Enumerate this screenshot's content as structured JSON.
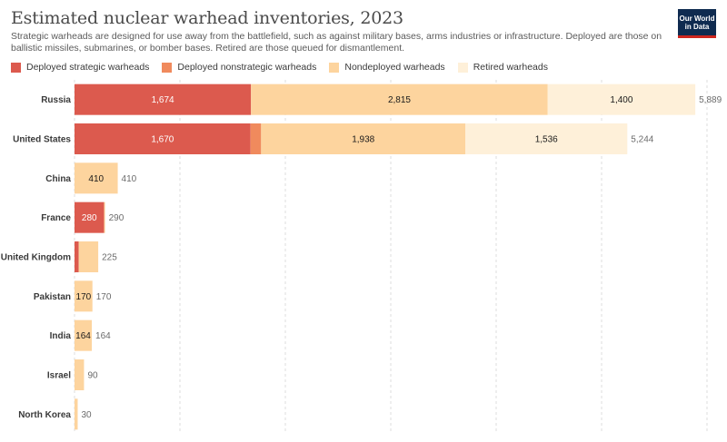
{
  "header": {
    "title": "Estimated nuclear warhead inventories, 2023",
    "subtitle": "Strategic warheads are designed for use away from the battlefield, such as against military bases, arms industries or infrastructure. Deployed are those on ballistic missiles, submarines, or bomber bases. Retired are those queued for dismantlement.",
    "logo_line1": "Our World",
    "logo_line2": "in Data"
  },
  "legend": [
    {
      "label": "Deployed strategic warheads",
      "color": "#dc5a4e"
    },
    {
      "label": "Deployed nonstrategic warheads",
      "color": "#f08a5d"
    },
    {
      "label": "Nondeployed warheads",
      "color": "#fdd49e"
    },
    {
      "label": "Retired warheads",
      "color": "#fef0d9"
    }
  ],
  "chart_data": {
    "type": "bar",
    "orientation": "horizontal",
    "stacked": true,
    "categories": [
      "Russia",
      "United States",
      "China",
      "France",
      "United Kingdom",
      "Pakistan",
      "India",
      "Israel",
      "North Korea"
    ],
    "series": [
      {
        "name": "Deployed strategic warheads",
        "color": "#dc5a4e",
        "values": [
          1674,
          1670,
          0,
          280,
          40,
          0,
          0,
          0,
          0
        ],
        "labels": [
          "1,674",
          "1,670",
          "",
          "280",
          "",
          "",
          "",
          "",
          ""
        ]
      },
      {
        "name": "Deployed nonstrategic warheads",
        "color": "#f08a5d",
        "values": [
          0,
          100,
          0,
          0,
          0,
          0,
          0,
          0,
          0
        ],
        "labels": [
          "",
          "",
          "",
          "",
          "",
          "",
          "",
          "",
          ""
        ]
      },
      {
        "name": "Nondeployed warheads",
        "color": "#fdd49e",
        "values": [
          2815,
          1938,
          410,
          10,
          185,
          170,
          164,
          90,
          30
        ],
        "labels": [
          "2,815",
          "1,938",
          "410",
          "",
          "",
          "170",
          "164",
          "",
          ""
        ]
      },
      {
        "name": "Retired warheads",
        "color": "#fef0d9",
        "values": [
          1400,
          1536,
          0,
          0,
          0,
          0,
          0,
          0,
          0
        ],
        "labels": [
          "1,400",
          "1,536",
          "",
          "",
          "",
          "",
          "",
          "",
          ""
        ]
      }
    ],
    "totals": [
      "5,889",
      "5,244",
      "410",
      "290",
      "225",
      "170",
      "164",
      "90",
      "30"
    ],
    "xlim": [
      0,
      6000
    ],
    "gridlines": [
      0,
      1000,
      2000,
      3000,
      4000,
      5000,
      6000
    ],
    "grid": true
  }
}
